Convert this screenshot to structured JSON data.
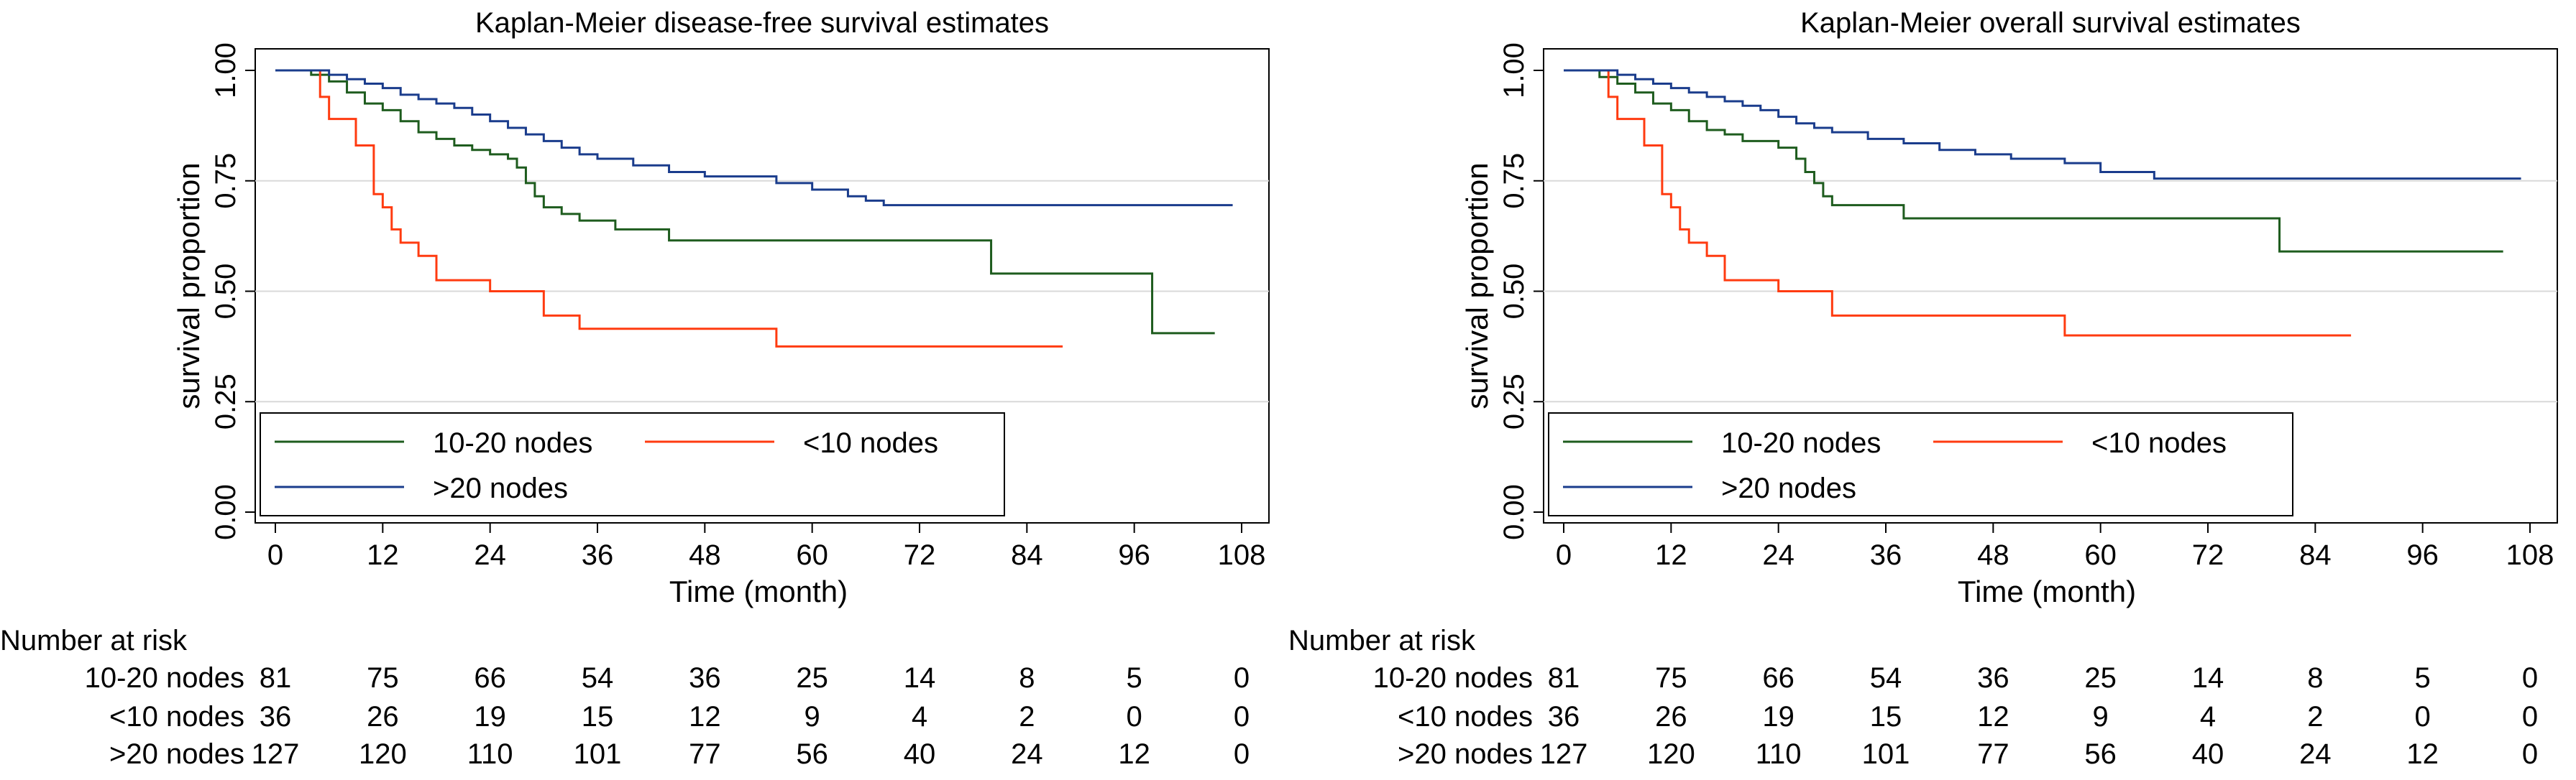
{
  "chart_data": [
    {
      "type": "line",
      "title": "Kaplan-Meier disease-free survival estimates",
      "xlabel": "Time (month)",
      "ylabel": "survival proportion",
      "xlim": [
        0,
        108
      ],
      "ylim": [
        0,
        1
      ],
      "xticks": [
        "0",
        "12",
        "24",
        "36",
        "48",
        "60",
        "72",
        "84",
        "96",
        "108"
      ],
      "yticks": [
        "0.00",
        "0.25",
        "0.50",
        "0.75",
        "1.00"
      ],
      "grid": true,
      "legend": {
        "position": "bottom-left",
        "order": [
          "10-20 nodes",
          "<10 nodes",
          ">20 nodes"
        ]
      },
      "series": [
        {
          "name": "10-20 nodes",
          "color": "#1e5c1e",
          "x": [
            0,
            4,
            6,
            8,
            10,
            12,
            14,
            16,
            18,
            20,
            22,
            24,
            26,
            27,
            28,
            29,
            30,
            32,
            34,
            38,
            44,
            80,
            98,
            105
          ],
          "y": [
            1.0,
            0.99,
            0.975,
            0.95,
            0.925,
            0.91,
            0.885,
            0.86,
            0.845,
            0.83,
            0.82,
            0.81,
            0.8,
            0.78,
            0.745,
            0.715,
            0.69,
            0.675,
            0.66,
            0.64,
            0.615,
            0.54,
            0.405,
            0.405
          ]
        },
        {
          "name": "<10 nodes",
          "color": "#ff3b10",
          "x": [
            0,
            4,
            5,
            6,
            9,
            11,
            12,
            13,
            14,
            16,
            18,
            24,
            30,
            34,
            56,
            88
          ],
          "y": [
            1.0,
            1.0,
            0.94,
            0.89,
            0.83,
            0.72,
            0.69,
            0.64,
            0.61,
            0.58,
            0.525,
            0.5,
            0.445,
            0.415,
            0.375,
            0.375
          ]
        },
        {
          "name": ">20 nodes",
          "color": "#1a3c8c",
          "x": [
            0,
            6,
            8,
            10,
            12,
            14,
            16,
            18,
            20,
            22,
            24,
            26,
            28,
            30,
            32,
            34,
            36,
            40,
            44,
            48,
            56,
            60,
            64,
            66,
            68,
            107
          ],
          "y": [
            1.0,
            0.99,
            0.98,
            0.97,
            0.96,
            0.945,
            0.935,
            0.925,
            0.915,
            0.9,
            0.885,
            0.87,
            0.855,
            0.84,
            0.825,
            0.81,
            0.8,
            0.785,
            0.77,
            0.76,
            0.745,
            0.73,
            0.715,
            0.705,
            0.695,
            0.695
          ]
        }
      ],
      "risk_table": {
        "header": "Number at risk",
        "rows": [
          {
            "label": "10-20 nodes",
            "values": [
              "81",
              "75",
              "66",
              "54",
              "36",
              "25",
              "14",
              "8",
              "5",
              "0"
            ]
          },
          {
            "label": "<10 nodes",
            "values": [
              "36",
              "26",
              "19",
              "15",
              "12",
              "9",
              "4",
              "2",
              "0",
              "0"
            ]
          },
          {
            "label": ">20 nodes",
            "values": [
              "127",
              "120",
              "110",
              "101",
              "77",
              "56",
              "40",
              "24",
              "12",
              "0"
            ]
          }
        ]
      }
    },
    {
      "type": "line",
      "title": "Kaplan-Meier overall survival estimates",
      "xlabel": "Time (month)",
      "ylabel": "survival proportion",
      "xlim": [
        0,
        108
      ],
      "ylim": [
        0,
        1
      ],
      "xticks": [
        "0",
        "12",
        "24",
        "36",
        "48",
        "60",
        "72",
        "84",
        "96",
        "108"
      ],
      "yticks": [
        "0.00",
        "0.25",
        "0.50",
        "0.75",
        "1.00"
      ],
      "grid": true,
      "legend": {
        "position": "bottom-left",
        "order": [
          "10-20 nodes",
          "<10 nodes",
          ">20 nodes"
        ]
      },
      "series": [
        {
          "name": "10-20 nodes",
          "color": "#1e5c1e",
          "x": [
            0,
            4,
            6,
            8,
            10,
            12,
            14,
            16,
            18,
            20,
            24,
            26,
            27,
            28,
            29,
            30,
            38,
            80,
            105
          ],
          "y": [
            1.0,
            0.985,
            0.97,
            0.95,
            0.925,
            0.91,
            0.885,
            0.865,
            0.855,
            0.84,
            0.825,
            0.8,
            0.77,
            0.745,
            0.715,
            0.695,
            0.665,
            0.59,
            0.59
          ]
        },
        {
          "name": "<10 nodes",
          "color": "#ff3b10",
          "x": [
            0,
            4,
            5,
            6,
            9,
            11,
            12,
            13,
            14,
            16,
            18,
            24,
            30,
            56,
            88
          ],
          "y": [
            1.0,
            1.0,
            0.94,
            0.89,
            0.83,
            0.72,
            0.69,
            0.64,
            0.61,
            0.58,
            0.525,
            0.5,
            0.445,
            0.4,
            0.4
          ]
        },
        {
          "name": ">20 nodes",
          "color": "#1a3c8c",
          "x": [
            0,
            6,
            8,
            10,
            12,
            14,
            16,
            18,
            20,
            22,
            24,
            26,
            28,
            30,
            34,
            38,
            42,
            46,
            50,
            56,
            60,
            66,
            107
          ],
          "y": [
            1.0,
            0.99,
            0.98,
            0.97,
            0.96,
            0.95,
            0.94,
            0.93,
            0.92,
            0.91,
            0.895,
            0.88,
            0.87,
            0.86,
            0.845,
            0.835,
            0.82,
            0.81,
            0.8,
            0.79,
            0.77,
            0.755,
            0.755
          ]
        }
      ],
      "risk_table": {
        "header": "Number at risk",
        "rows": [
          {
            "label": "10-20 nodes",
            "values": [
              "81",
              "75",
              "66",
              "54",
              "36",
              "25",
              "14",
              "8",
              "5",
              "0"
            ]
          },
          {
            "label": "<10 nodes",
            "values": [
              "36",
              "26",
              "19",
              "15",
              "12",
              "9",
              "4",
              "2",
              "0",
              "0"
            ]
          },
          {
            "label": ">20 nodes",
            "values": [
              "127",
              "120",
              "110",
              "101",
              "77",
              "56",
              "40",
              "24",
              "12",
              "0"
            ]
          }
        ]
      }
    }
  ]
}
